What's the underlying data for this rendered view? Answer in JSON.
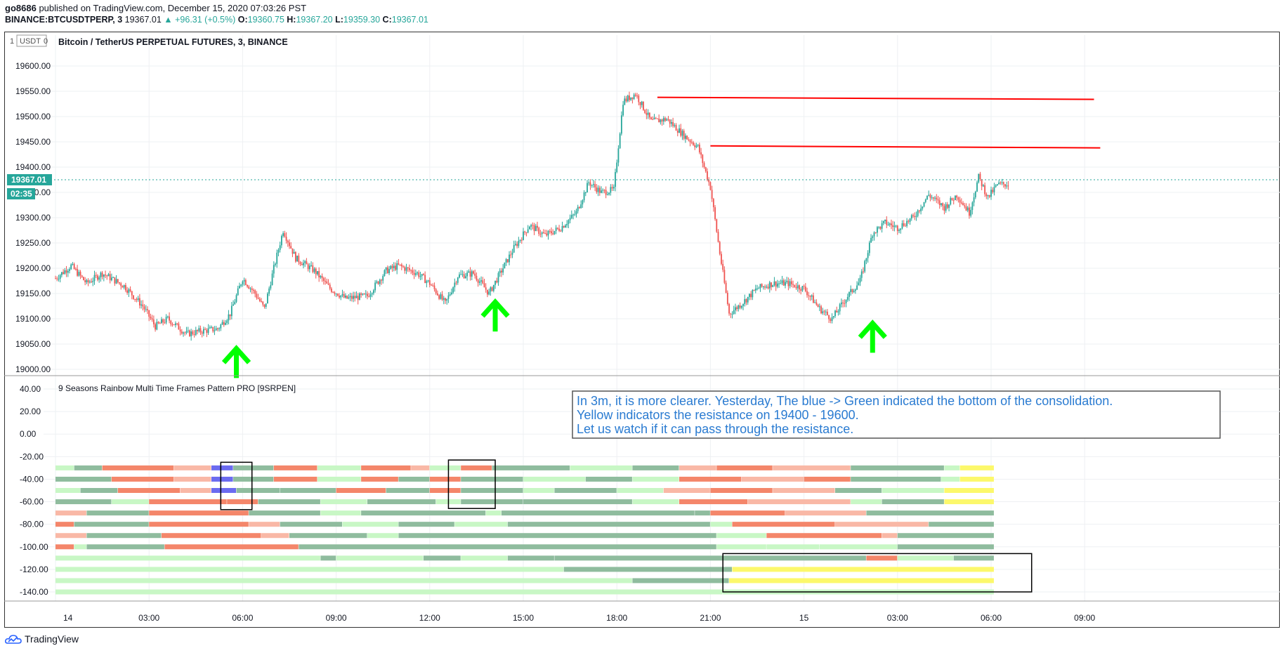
{
  "header": {
    "author": "go8686",
    "published": "published on TradingView.com, December 15, 2020 07:03:26 PST",
    "symbol": "BINANCE:BTCUSDTPERP, 3",
    "last": "19367.01",
    "change": "▲ +96.31 (+0.5%)",
    "o_label": "O:",
    "o": "19360.75",
    "h_label": "H:",
    "h": "19367.20",
    "l_label": "L:",
    "l": "19359.30",
    "c_label": "C:",
    "c": "19367.01"
  },
  "chart_header": {
    "currency_badge": "USDT",
    "pair_title": "Bitcoin / TetherUS PERPETUAL FUTURES, 3, BINANCE",
    "price_tag": "19367.01",
    "countdown": "02:35"
  },
  "indicator": {
    "title": "9 Seasons Rainbow Multi Time Frames Pattern PRO [9SRPEN]",
    "annotation": [
      "In 3m, it is more clearer. Yesterday, The blue -> Green indicated the bottom of the consolidation.",
      "Yellow indicators the resistance on 19400 - 19600.",
      "Let us watch if it can pass through the resistance."
    ]
  },
  "footer": {
    "brand": "TradingView"
  },
  "colors": {
    "up": "#26a69a",
    "down": "#ef5350",
    "resistance": "#ff0000",
    "arrow": "#00ff00",
    "dark_green": "#8fbc9e",
    "light_green": "#c8f7c5",
    "red": "#f4866a",
    "pink": "#f9b8a6",
    "blue": "#6b6bf0",
    "yellow": "#fcf86b",
    "bright_green": "#7ff07f"
  },
  "chart_data": [
    {
      "type": "candlestick",
      "title": "Bitcoin / TetherUS PERPETUAL FUTURES, 3, BINANCE",
      "x_ticks": [
        "14",
        "03:00",
        "06:00",
        "09:00",
        "12:00",
        "15:00",
        "18:00",
        "21:00",
        "15",
        "03:00",
        "06:00",
        "09:00"
      ],
      "y_ticks": [
        "19600.00",
        "19550.00",
        "19500.00",
        "19450.00",
        "19400.00",
        "19350.00",
        "19300.00",
        "19250.00",
        "19200.00",
        "19150.00",
        "19100.00",
        "19050.00",
        "19000.00"
      ],
      "ylim": [
        18980,
        19620
      ],
      "last_price": 19367.01,
      "price_path": [
        [
          0,
          19180
        ],
        [
          0.5,
          19205
        ],
        [
          1.0,
          19170
        ],
        [
          1.5,
          19190
        ],
        [
          2.2,
          19165
        ],
        [
          2.8,
          19125
        ],
        [
          3.2,
          19085
        ],
        [
          3.6,
          19100
        ],
        [
          4.2,
          19070
        ],
        [
          4.6,
          19075
        ],
        [
          5.2,
          19080
        ],
        [
          5.6,
          19110
        ],
        [
          6.0,
          19180
        ],
        [
          6.4,
          19150
        ],
        [
          6.7,
          19120
        ],
        [
          7.0,
          19200
        ],
        [
          7.3,
          19275
        ],
        [
          7.7,
          19220
        ],
        [
          8.3,
          19195
        ],
        [
          8.8,
          19160
        ],
        [
          9.3,
          19140
        ],
        [
          10.0,
          19145
        ],
        [
          10.6,
          19195
        ],
        [
          11.0,
          19205
        ],
        [
          11.6,
          19190
        ],
        [
          12.0,
          19170
        ],
        [
          12.5,
          19130
        ],
        [
          12.9,
          19185
        ],
        [
          13.4,
          19190
        ],
        [
          13.9,
          19150
        ],
        [
          14.3,
          19195
        ],
        [
          14.7,
          19240
        ],
        [
          15.2,
          19285
        ],
        [
          15.7,
          19265
        ],
        [
          16.2,
          19280
        ],
        [
          16.7,
          19310
        ],
        [
          17.1,
          19370
        ],
        [
          17.5,
          19350
        ],
        [
          17.9,
          19355
        ],
        [
          18.2,
          19530
        ],
        [
          18.6,
          19545
        ],
        [
          19.1,
          19490
        ],
        [
          19.6,
          19495
        ],
        [
          20.2,
          19460
        ],
        [
          20.6,
          19440
        ],
        [
          21.0,
          19360
        ],
        [
          21.3,
          19230
        ],
        [
          21.6,
          19110
        ],
        [
          22.0,
          19130
        ],
        [
          22.5,
          19160
        ],
        [
          23.0,
          19170
        ],
        [
          23.5,
          19170
        ],
        [
          24.0,
          19160
        ],
        [
          24.5,
          19120
        ],
        [
          24.9,
          19100
        ],
        [
          25.4,
          19145
        ],
        [
          25.8,
          19175
        ],
        [
          26.2,
          19270
        ],
        [
          26.6,
          19290
        ],
        [
          27.0,
          19280
        ],
        [
          27.5,
          19300
        ],
        [
          28.0,
          19345
        ],
        [
          28.5,
          19320
        ],
        [
          28.9,
          19345
        ],
        [
          29.3,
          19310
        ],
        [
          29.6,
          19380
        ],
        [
          29.9,
          19340
        ],
        [
          30.2,
          19365
        ],
        [
          30.6,
          19367
        ]
      ],
      "resistance_lines": [
        {
          "x1": 19.3,
          "y1": 19538,
          "x2": 33.3,
          "y2": 19534
        },
        {
          "x1": 21.0,
          "y1": 19442,
          "x2": 33.5,
          "y2": 19438
        }
      ],
      "up_arrows": [
        {
          "x": 5.8,
          "price": 19030
        },
        {
          "x": 14.1,
          "price": 19122
        },
        {
          "x": 26.2,
          "price": 19080
        }
      ]
    },
    {
      "type": "heatmap",
      "title": "9 Seasons Rainbow Multi Time Frames Pattern PRO [9SRPEN]",
      "y_ticks": [
        "40.00",
        "20.00",
        "0.00",
        "-20.00",
        "-40.00",
        "-60.00",
        "-80.00",
        "-100.00",
        "-120.00",
        "-140.00"
      ],
      "ylim": [
        -148,
        48
      ],
      "row_levels": [
        -30,
        -40,
        -50,
        -60,
        -70,
        -80,
        -90,
        -100,
        -110,
        -120,
        -130,
        -140
      ],
      "rows": [
        [
          [
            0,
            "light_green"
          ],
          [
            0.6,
            "dark_green"
          ],
          [
            1.5,
            "red"
          ],
          [
            3.8,
            "pink"
          ],
          [
            5.0,
            "blue"
          ],
          [
            5.7,
            "dark_green"
          ],
          [
            7.0,
            "red"
          ],
          [
            8.4,
            "light_green"
          ],
          [
            9.8,
            "red"
          ],
          [
            11.4,
            "pink"
          ],
          [
            12.0,
            "light_green"
          ],
          [
            13.0,
            "red"
          ],
          [
            14.0,
            "dark_green"
          ],
          [
            16.5,
            "light_green"
          ],
          [
            18.5,
            "dark_green"
          ],
          [
            20.0,
            "pink"
          ],
          [
            21.2,
            "red"
          ],
          [
            23.0,
            "pink"
          ],
          [
            25.5,
            "dark_green"
          ],
          [
            28.5,
            "light_green"
          ],
          [
            29.0,
            "yellow"
          ],
          [
            30.1,
            "dark_green"
          ]
        ],
        [
          [
            0,
            "dark_green"
          ],
          [
            1.8,
            "red"
          ],
          [
            3.8,
            "pink"
          ],
          [
            5.0,
            "blue"
          ],
          [
            5.7,
            "dark_green"
          ],
          [
            7.0,
            "red"
          ],
          [
            8.4,
            "light_green"
          ],
          [
            9.8,
            "red"
          ],
          [
            11.0,
            "dark_green"
          ],
          [
            12.0,
            "red"
          ],
          [
            13.0,
            "dark_green"
          ],
          [
            15.0,
            "light_green"
          ],
          [
            17.0,
            "dark_green"
          ],
          [
            18.5,
            "light_green"
          ],
          [
            20.0,
            "red"
          ],
          [
            22.0,
            "pink"
          ],
          [
            24.0,
            "red"
          ],
          [
            25.5,
            "dark_green"
          ],
          [
            28.4,
            "light_green"
          ],
          [
            29.0,
            "yellow"
          ],
          [
            30.1,
            "yellow"
          ]
        ],
        [
          [
            0,
            "light_green"
          ],
          [
            0.8,
            "dark_green"
          ],
          [
            2.0,
            "red"
          ],
          [
            4.0,
            "pink"
          ],
          [
            5.0,
            "blue"
          ],
          [
            5.8,
            "dark_green"
          ],
          [
            7.2,
            "dark_green"
          ],
          [
            9.0,
            "red"
          ],
          [
            10.6,
            "dark_green"
          ],
          [
            12.0,
            "red"
          ],
          [
            13.0,
            "dark_green"
          ],
          [
            15.0,
            "light_green"
          ],
          [
            16.0,
            "dark_green"
          ],
          [
            18.0,
            "light_green"
          ],
          [
            19.5,
            "pink"
          ],
          [
            21.0,
            "red"
          ],
          [
            23.0,
            "pink"
          ],
          [
            25.0,
            "dark_green"
          ],
          [
            26.5,
            "light_green"
          ],
          [
            28.5,
            "yellow"
          ],
          [
            30.1,
            "yellow"
          ]
        ],
        [
          [
            0,
            "dark_green"
          ],
          [
            1.8,
            "light_green"
          ],
          [
            3.0,
            "red"
          ],
          [
            5.5,
            "red"
          ],
          [
            6.5,
            "dark_green"
          ],
          [
            8.5,
            "light_green"
          ],
          [
            10.0,
            "dark_green"
          ],
          [
            12.2,
            "light_green"
          ],
          [
            13.0,
            "dark_green"
          ],
          [
            15.0,
            "dark_green"
          ],
          [
            18.5,
            "light_green"
          ],
          [
            20.0,
            "red"
          ],
          [
            22.2,
            "pink"
          ],
          [
            25.5,
            "light_green"
          ],
          [
            26.5,
            "dark_green"
          ],
          [
            28.5,
            "yellow"
          ],
          [
            30.1,
            "yellow"
          ]
        ],
        [
          [
            0,
            "pink"
          ],
          [
            1.0,
            "dark_green"
          ],
          [
            3.0,
            "red"
          ],
          [
            6.2,
            "dark_green"
          ],
          [
            8.5,
            "light_green"
          ],
          [
            9.8,
            "dark_green"
          ],
          [
            13.8,
            "light_green"
          ],
          [
            14.3,
            "dark_green"
          ],
          [
            20.5,
            "dark_green"
          ],
          [
            21.0,
            "red"
          ],
          [
            23.4,
            "pink"
          ],
          [
            26.0,
            "dark_green"
          ],
          [
            30.1,
            "dark_green"
          ]
        ],
        [
          [
            0,
            "red"
          ],
          [
            0.6,
            "dark_green"
          ],
          [
            3.0,
            "red"
          ],
          [
            6.2,
            "pink"
          ],
          [
            7.2,
            "dark_green"
          ],
          [
            9.2,
            "light_green"
          ],
          [
            11.0,
            "dark_green"
          ],
          [
            12.8,
            "light_green"
          ],
          [
            14.5,
            "dark_green"
          ],
          [
            21.0,
            "light_green"
          ],
          [
            21.7,
            "red"
          ],
          [
            25.0,
            "pink"
          ],
          [
            28.0,
            "dark_green"
          ],
          [
            30.1,
            "dark_green"
          ]
        ],
        [
          [
            0,
            "pink"
          ],
          [
            1.0,
            "dark_green"
          ],
          [
            3.4,
            "red"
          ],
          [
            6.6,
            "pink"
          ],
          [
            7.5,
            "dark_green"
          ],
          [
            10.0,
            "light_green"
          ],
          [
            11.0,
            "dark_green"
          ],
          [
            21.2,
            "light_green"
          ],
          [
            22.8,
            "red"
          ],
          [
            26.5,
            "pink"
          ],
          [
            27.0,
            "dark_green"
          ],
          [
            30.1,
            "dark_green"
          ]
        ],
        [
          [
            0,
            "red"
          ],
          [
            0.6,
            "light_green"
          ],
          [
            1.0,
            "dark_green"
          ],
          [
            3.5,
            "red"
          ],
          [
            7.8,
            "dark_green"
          ],
          [
            21.2,
            "light_green"
          ],
          [
            22.8,
            "light_green"
          ],
          [
            24.5,
            "light_green"
          ],
          [
            27.0,
            "dark_green"
          ],
          [
            30.1,
            "dark_green"
          ]
        ],
        [
          [
            0,
            "light_green"
          ],
          [
            8.5,
            "dark_green"
          ],
          [
            9.0,
            "light_green"
          ],
          [
            11.8,
            "dark_green"
          ],
          [
            13.0,
            "light_green"
          ],
          [
            14.5,
            "dark_green"
          ],
          [
            16.0,
            "dark_green"
          ],
          [
            26.0,
            "red"
          ],
          [
            27.0,
            "light_green"
          ],
          [
            28.8,
            "dark_green"
          ],
          [
            30.1,
            "dark_green"
          ]
        ],
        [
          [
            0,
            "light_green"
          ],
          [
            16.3,
            "dark_green"
          ],
          [
            21.7,
            "yellow"
          ],
          [
            30.1,
            "yellow"
          ]
        ],
        [
          [
            0,
            "light_green"
          ],
          [
            18.5,
            "dark_green"
          ],
          [
            21.6,
            "yellow"
          ],
          [
            30.1,
            "yellow"
          ]
        ],
        [
          [
            0,
            "light_green"
          ],
          [
            21.4,
            "light_green"
          ],
          [
            30.1,
            "light_green"
          ]
        ]
      ],
      "highlight_boxes": [
        {
          "x1": 5.3,
          "x2": 6.3,
          "y1": -25,
          "y2": -67
        },
        {
          "x1": 12.6,
          "x2": 14.1,
          "y1": -23,
          "y2": -66
        },
        {
          "x1": 21.4,
          "x2": 31.3,
          "y1": -106,
          "y2": -140
        }
      ]
    }
  ]
}
